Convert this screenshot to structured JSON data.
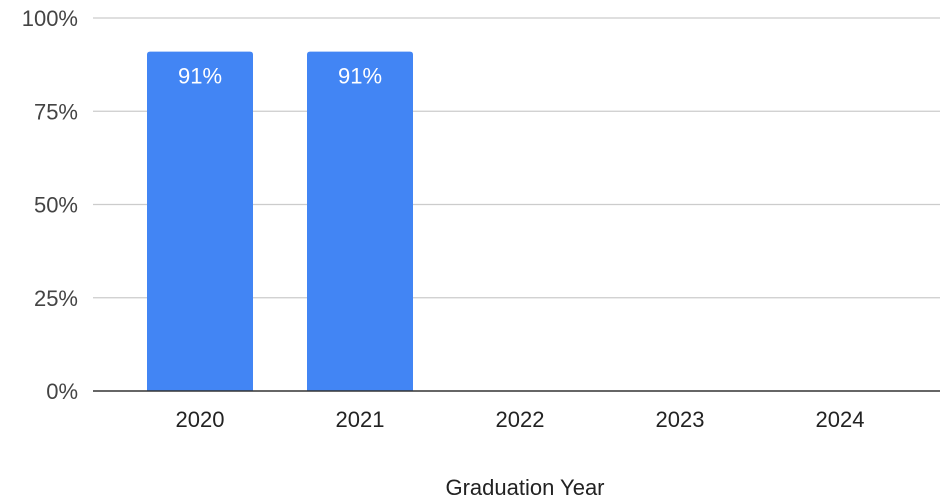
{
  "chart_data": {
    "type": "bar",
    "categories": [
      "2020",
      "2021",
      "2022",
      "2023",
      "2024"
    ],
    "values": [
      91,
      91,
      null,
      null,
      null
    ],
    "data_labels": [
      "91%",
      "91%",
      "",
      "",
      ""
    ],
    "title": "",
    "xlabel": "Graduation Year",
    "ylabel": "",
    "ylim": [
      0,
      100
    ],
    "yticks": [
      0,
      25,
      50,
      75,
      100
    ],
    "ytick_labels": [
      "0%",
      "25%",
      "50%",
      "75%",
      "100%"
    ],
    "grid": true,
    "legend": "none",
    "colors": {
      "bar": "#4285F4",
      "grid": "#cccccc",
      "axis": "#333333",
      "tick_text": "#444444",
      "data_label_text": "#ffffff"
    }
  }
}
